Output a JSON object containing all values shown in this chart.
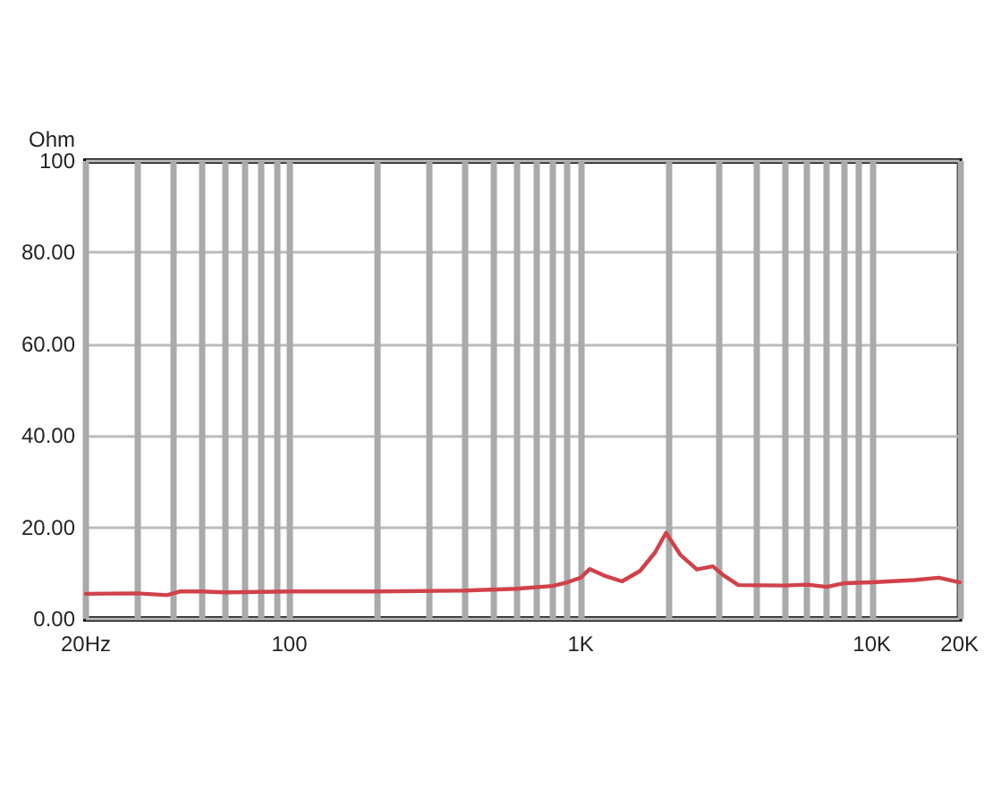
{
  "chart_data": {
    "type": "line",
    "ylabel": "Ohm",
    "log": "x",
    "grid": true,
    "marker": "none",
    "line_style": "solid",
    "xlim": [
      20,
      20000
    ],
    "ylim": [
      0,
      100
    ],
    "xticks": [
      {
        "value": 20,
        "label": "20Hz"
      },
      {
        "value": 30,
        "label": null
      },
      {
        "value": 40,
        "label": null
      },
      {
        "value": 50,
        "label": null
      },
      {
        "value": 60,
        "label": null
      },
      {
        "value": 70,
        "label": null
      },
      {
        "value": 80,
        "label": null
      },
      {
        "value": 90,
        "label": null
      },
      100,
      {
        "value": 200,
        "label": null
      },
      {
        "value": 300,
        "label": null
      },
      {
        "value": 400,
        "label": null
      },
      {
        "value": 500,
        "label": null
      },
      {
        "value": 600,
        "label": null
      },
      {
        "value": 700,
        "label": null
      },
      {
        "value": 800,
        "label": null
      },
      {
        "value": 900,
        "label": null
      },
      {
        "value": 1000,
        "label": "1K"
      },
      {
        "value": 2000,
        "label": null
      },
      {
        "value": 3000,
        "label": null
      },
      {
        "value": 4000,
        "label": null
      },
      {
        "value": 5000,
        "label": null
      },
      {
        "value": 6000,
        "label": null
      },
      {
        "value": 7000,
        "label": null
      },
      {
        "value": 8000,
        "label": null
      },
      {
        "value": 9000,
        "label": null
      },
      {
        "value": 10000,
        "label": "10K"
      },
      {
        "value": 20000,
        "label": "20K"
      }
    ],
    "yticks": [
      {
        "value": 0,
        "label": "0.00"
      },
      {
        "value": 20,
        "label": "20.00"
      },
      {
        "value": 40,
        "label": "40.00"
      },
      {
        "value": 60,
        "label": "60.00"
      },
      {
        "value": 80,
        "label": "80.00"
      },
      100
    ],
    "x": [
      20,
      30,
      38,
      42,
      50,
      60,
      100,
      200,
      400,
      600,
      800,
      900,
      1000,
      1075,
      1200,
      1386,
      1600,
      1800,
      1964,
      2200,
      2506,
      2845,
      3100,
      3480,
      5000,
      6000,
      7000,
      8000,
      10000,
      14000,
      17000,
      20000
    ],
    "series": [
      {
        "color": "#d0424a",
        "values": [
          5.5,
          5.6,
          5.2,
          6.0,
          6.0,
          5.8,
          6.0,
          6.0,
          6.2,
          6.6,
          7.2,
          8.0,
          9.0,
          10.9,
          9.5,
          8.2,
          10.5,
          14.5,
          18.8,
          14.0,
          10.8,
          11.5,
          9.5,
          7.4,
          7.3,
          7.5,
          7.0,
          7.8,
          8.0,
          8.5,
          9.0,
          8.0
        ]
      }
    ]
  }
}
